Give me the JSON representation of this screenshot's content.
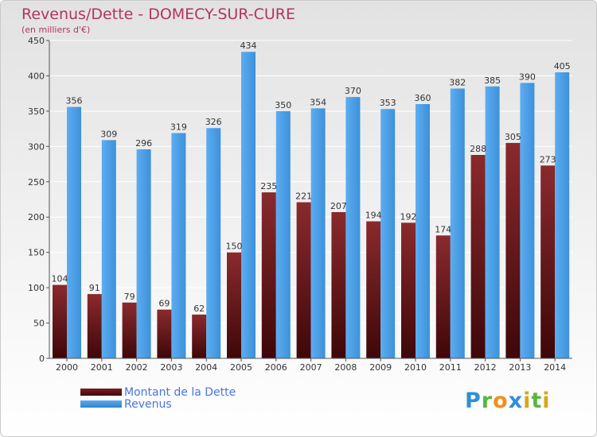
{
  "chart_data": {
    "type": "bar",
    "title": "Revenus/Dette - DOMECY-SUR-CURE",
    "subtitle": "(en milliers d'€)",
    "categories": [
      "2000",
      "2001",
      "2002",
      "2003",
      "2004",
      "2005",
      "2006",
      "2007",
      "2008",
      "2009",
      "2010",
      "2011",
      "2012",
      "2013",
      "2014"
    ],
    "series": [
      {
        "name": "Montant de la Dette",
        "color": "#7a1f22",
        "values": [
          104,
          91,
          79,
          69,
          62,
          150,
          235,
          221,
          207,
          194,
          192,
          174,
          288,
          305,
          273
        ]
      },
      {
        "name": "Revenus",
        "color": "#4ea0e6",
        "values": [
          356,
          309,
          296,
          319,
          326,
          434,
          350,
          354,
          370,
          353,
          360,
          382,
          385,
          390,
          405
        ]
      }
    ],
    "ylim": [
      0,
      450
    ],
    "yticks": [
      0,
      50,
      100,
      150,
      200,
      250,
      300,
      350,
      400,
      450
    ],
    "grid": true,
    "legend_position": "bottom-left"
  },
  "brand": {
    "text": "Proxiti"
  }
}
